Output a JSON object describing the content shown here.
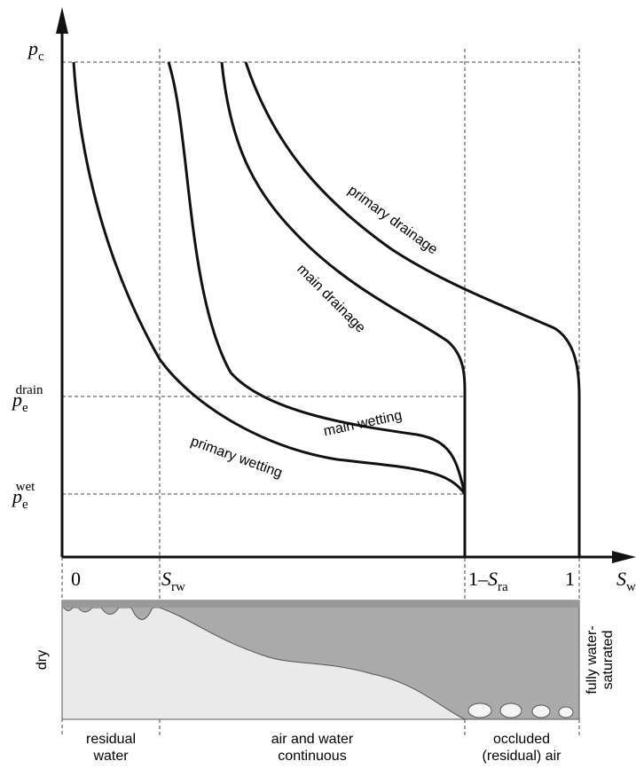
{
  "axes": {
    "y_label": {
      "symbol": "p",
      "sub": "c"
    },
    "y_levels": [
      {
        "symbol": "p",
        "sub": "e",
        "sup": "drain"
      },
      {
        "symbol": "p",
        "sub": "e",
        "sup": "wet"
      }
    ],
    "x_label": {
      "symbol": "S",
      "sub": "w"
    },
    "x_points": [
      {
        "symbol": "0"
      },
      {
        "symbol": "S",
        "sub": "rw"
      },
      {
        "prefix": "1–",
        "symbol": "S",
        "sub": "ra"
      },
      {
        "symbol": "1"
      }
    ]
  },
  "curves": [
    {
      "label": "primary drainage"
    },
    {
      "label": "main drainage"
    },
    {
      "label": "main wetting"
    },
    {
      "label": "primary wetting"
    }
  ],
  "panel": {
    "left": "dry",
    "right": [
      "fully water-",
      "saturated"
    ]
  },
  "zones": [
    [
      "residual",
      "water"
    ],
    [
      "air and water",
      "continuous"
    ],
    [
      "occluded",
      "(residual) air"
    ]
  ]
}
